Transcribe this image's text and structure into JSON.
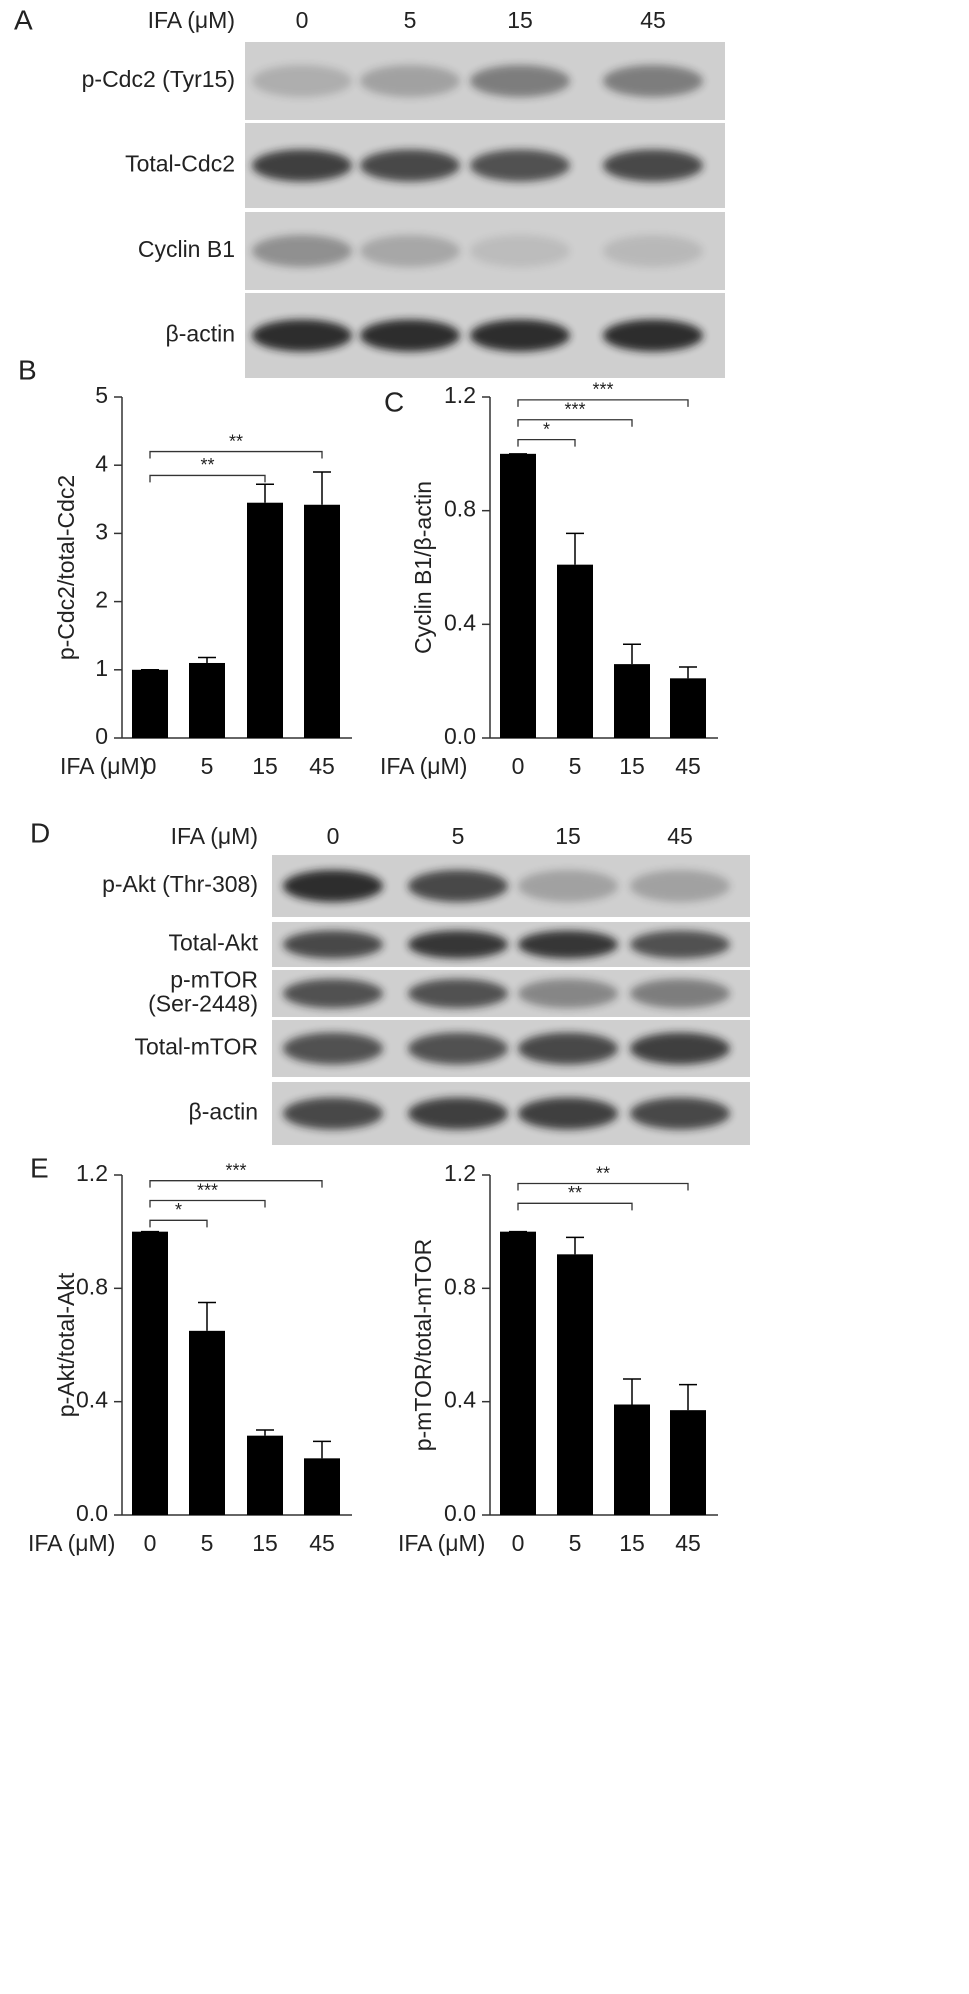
{
  "blots": [
    {
      "panel": "A",
      "header": "IFA (μM)",
      "lanes": [
        "0",
        "5",
        "15",
        "45"
      ],
      "rows": [
        "p-Cdc2 (Tyr15)",
        "Total-Cdc2",
        "Cyclin B1",
        "β-actin"
      ]
    },
    {
      "panel": "D",
      "header": "IFA (μM)",
      "lanes": [
        "0",
        "5",
        "15",
        "45"
      ],
      "rows": [
        "p-Akt (Thr-308)",
        "Total-Akt",
        [
          "p-mTOR",
          "(Ser-2448)"
        ],
        "Total-mTOR",
        "β-actin"
      ]
    }
  ],
  "chart_data": [
    {
      "type": "bar",
      "panel": "B",
      "y_label": "p-Cdc2/total-Cdc2",
      "x_label": "IFA (μM)",
      "categories": [
        "0",
        "5",
        "15",
        "45"
      ],
      "values": [
        1,
        1.1,
        3.45,
        3.42
      ],
      "errors": [
        0,
        0.08,
        0.27,
        0.48
      ],
      "color": "#000000",
      "ylim": [
        0,
        5
      ],
      "yticks": [
        0,
        1,
        2,
        3,
        4,
        5
      ],
      "brackets": [
        {
          "from": "0",
          "to": "15",
          "y": 3.85,
          "label": "**"
        },
        {
          "from": "0",
          "to": "45",
          "y": 4.2,
          "label": "**"
        }
      ]
    },
    {
      "type": "bar",
      "panel": "C",
      "y_label": "Cyclin B1/β-actin",
      "x_label": "IFA (μM)",
      "categories": [
        "0",
        "5",
        "15",
        "45"
      ],
      "values": [
        1,
        0.61,
        0.26,
        0.21
      ],
      "errors": [
        0,
        0.11,
        0.07,
        0.04
      ],
      "color": "#000000",
      "ylim": [
        0,
        1.2
      ],
      "yticks": [
        {
          "value": 0,
          "label": "0.0"
        },
        0.4,
        0.8,
        1.2
      ],
      "brackets": [
        {
          "from": "0",
          "to": "5",
          "y": 1.05,
          "label": "*"
        },
        {
          "from": "0",
          "to": "15",
          "y": 1.12,
          "label": "***"
        },
        {
          "from": "0",
          "to": "45",
          "y": 1.19,
          "label": "***"
        }
      ]
    },
    {
      "type": "bar",
      "panel": "E",
      "y_label": "p-Akt/total-Akt",
      "x_label": "IFA (μM)",
      "categories": [
        "0",
        "5",
        "15",
        "45"
      ],
      "values": [
        1,
        0.65,
        0.28,
        0.2
      ],
      "errors": [
        0,
        0.1,
        0.02,
        0.06
      ],
      "color": "#000000",
      "ylim": [
        0,
        1.2
      ],
      "yticks": [
        {
          "value": 0,
          "label": "0.0"
        },
        0.4,
        0.8,
        1.2
      ],
      "brackets": [
        {
          "from": "0",
          "to": "5",
          "y": 1.04,
          "label": "*"
        },
        {
          "from": "0",
          "to": "15",
          "y": 1.11,
          "label": "***"
        },
        {
          "from": "0",
          "to": "45",
          "y": 1.18,
          "label": "***"
        }
      ]
    },
    {
      "type": "bar",
      "y_label": "p-mTOR/total-mTOR",
      "x_label": "IFA (μM)",
      "categories": [
        "0",
        "5",
        "15",
        "45"
      ],
      "values": [
        1,
        0.92,
        0.39,
        0.37
      ],
      "errors": [
        0,
        0.06,
        0.09,
        0.09
      ],
      "color": "#000000",
      "ylim": [
        0,
        1.2
      ],
      "yticks": [
        {
          "value": 0,
          "label": "0.0"
        },
        0.4,
        0.8,
        1.2
      ],
      "brackets": [
        {
          "from": "0",
          "to": "15",
          "y": 1.1,
          "label": "**"
        },
        {
          "from": "0",
          "to": "45",
          "y": 1.17,
          "label": "**"
        }
      ]
    }
  ]
}
